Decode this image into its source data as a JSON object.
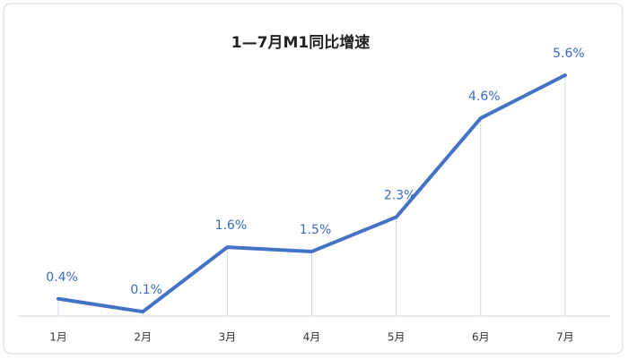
{
  "chart_data": {
    "type": "line",
    "title": "1—7月M1同比增速",
    "categories": [
      "1月",
      "2月",
      "3月",
      "4月",
      "5月",
      "6月",
      "7月"
    ],
    "values": [
      0.4,
      0.1,
      1.6,
      1.5,
      2.3,
      4.6,
      5.6
    ],
    "value_labels": [
      "0.4%",
      "0.1%",
      "1.6%",
      "1.5%",
      "2.3%",
      "4.6%",
      "5.6%"
    ],
    "color": "#4472c4"
  }
}
